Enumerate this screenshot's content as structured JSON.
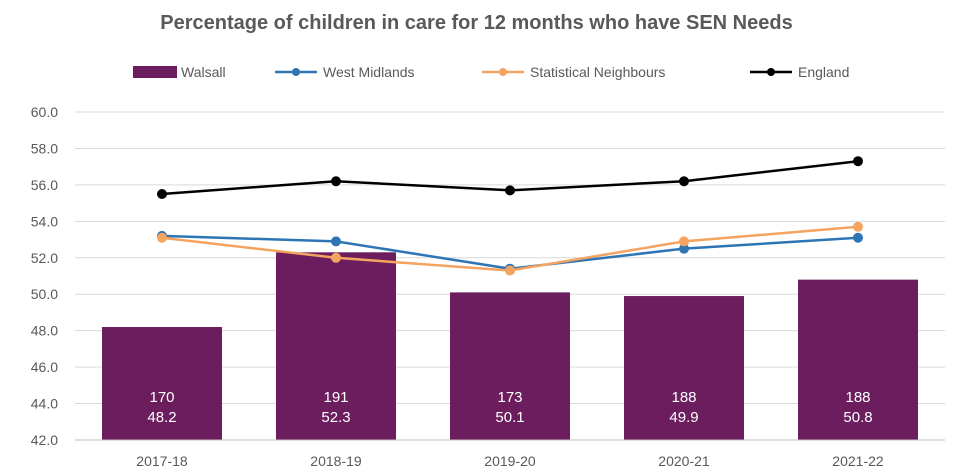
{
  "chart_data": {
    "type": "bar",
    "title": "Percentage of children in care for 12 months who have SEN Needs",
    "categories": [
      "2017-18",
      "2018-19",
      "2019-20",
      "2020-21",
      "2021-22"
    ],
    "ylim": [
      42.0,
      60.0
    ],
    "yticks": [
      "42.0",
      "44.0",
      "46.0",
      "48.0",
      "50.0",
      "52.0",
      "54.0",
      "56.0",
      "58.0",
      "60.0"
    ],
    "legend_position": "top",
    "bar_series": {
      "name": "Walsall",
      "color": "#6b1d5e",
      "values": [
        48.2,
        52.3,
        50.1,
        49.9,
        50.8
      ],
      "counts": [
        170,
        191,
        173,
        188,
        188
      ],
      "value_labels": [
        "48.2",
        "52.3",
        "50.1",
        "49.9",
        "50.8"
      ],
      "count_labels": [
        "170",
        "191",
        "173",
        "188",
        "188"
      ]
    },
    "line_series": [
      {
        "name": "West Midlands",
        "color": "#2e75b6",
        "values": [
          53.2,
          52.9,
          51.4,
          52.5,
          53.1
        ]
      },
      {
        "name": "Statistical Neighbours",
        "color": "#f4a460",
        "values": [
          53.1,
          52.0,
          51.3,
          52.9,
          53.7
        ]
      },
      {
        "name": "England",
        "color": "#000000",
        "values": [
          55.5,
          56.2,
          55.7,
          56.2,
          57.3
        ]
      }
    ]
  }
}
